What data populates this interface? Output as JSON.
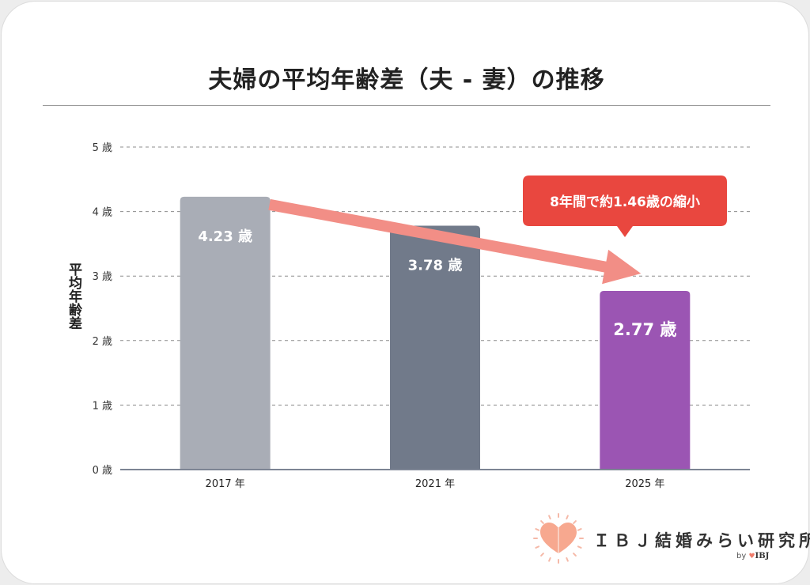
{
  "chart_data": {
    "type": "bar",
    "title": "夫婦の平均年齢差（夫 - 妻）の推移",
    "ylabel": "平均年齢差",
    "categories": [
      "2017 年",
      "2021 年",
      "2025 年"
    ],
    "values": [
      4.23,
      3.78,
      2.77
    ],
    "data_labels": [
      "4.23 歳",
      "3.78 歳",
      "2.77 歳"
    ],
    "bar_colors": [
      "#a9adb6",
      "#717a8a",
      "#9b55b3"
    ],
    "ylim": [
      0,
      5
    ],
    "yticks": [
      {
        "value": 0,
        "label": "0 歳"
      },
      {
        "value": 1,
        "label": "1 歳"
      },
      {
        "value": 2,
        "label": "2 歳"
      },
      {
        "value": 3,
        "label": "3 歳"
      },
      {
        "value": 4,
        "label": "4 歳"
      },
      {
        "value": 5,
        "label": "5 歳"
      }
    ],
    "grid": true,
    "annotation": {
      "text": "8年間で約1.46歳の縮小",
      "color": "#e9473f",
      "arrow_color": "#f28e86",
      "from_category": 0,
      "to_category": 2
    }
  },
  "brand": {
    "name": "ＩＢＪ結婚みらい研究所",
    "by": "by",
    "parent": "IBJ",
    "heart_icon": "heart-icon",
    "heart_color": "#f7a88f"
  }
}
